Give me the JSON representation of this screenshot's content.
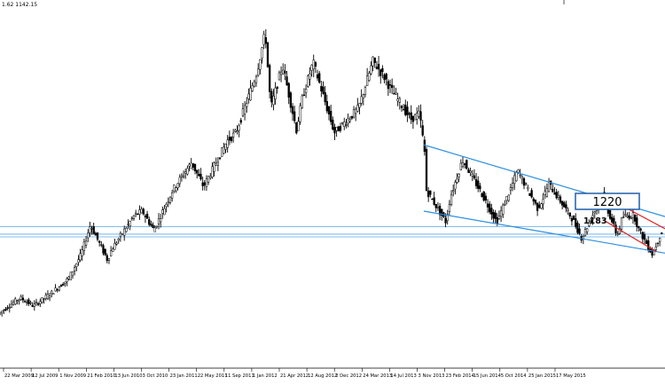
{
  "header": {
    "ohlc_text": "1.62 1142.15"
  },
  "chart_data": {
    "type": "candlestick",
    "xlim_date": [
      "2009-01-01",
      "2015-09-01"
    ],
    "ylim": [
      660,
      2020
    ],
    "grid": false,
    "x_tick_labels": [
      "22 Mar 2009",
      "12 Jul 2009",
      "1 Nov 2009",
      "21 Feb 2010",
      "13 Jun 2010",
      "3 Oct 2010",
      "23 Jan 2011",
      "22 May 2011",
      "11 Sep 2011",
      "1 Jan 2012",
      "21 Apr 2012",
      "12 Aug 2012",
      "2 Dec 2012",
      "24 Mar 2013",
      "14 Jul 2013",
      "3 Nov 2013",
      "23 Feb 2014",
      "15 Jun 2014",
      "5 Oct 2014",
      "25 Jan 2015",
      "17 May 2015"
    ],
    "price_path": [
      {
        "d": "2009-01-01",
        "v": 860
      },
      {
        "d": "2009-03-22",
        "v": 920
      },
      {
        "d": "2009-05-10",
        "v": 890
      },
      {
        "d": "2009-07-12",
        "v": 935
      },
      {
        "d": "2009-09-15",
        "v": 990
      },
      {
        "d": "2009-11-01",
        "v": 1080
      },
      {
        "d": "2009-12-05",
        "v": 1190
      },
      {
        "d": "2010-02-05",
        "v": 1060
      },
      {
        "d": "2010-02-21",
        "v": 1100
      },
      {
        "d": "2010-05-15",
        "v": 1225
      },
      {
        "d": "2010-06-13",
        "v": 1240
      },
      {
        "d": "2010-07-25",
        "v": 1170
      },
      {
        "d": "2010-10-03",
        "v": 1320
      },
      {
        "d": "2010-12-10",
        "v": 1420
      },
      {
        "d": "2011-01-23",
        "v": 1330
      },
      {
        "d": "2011-04-20",
        "v": 1500
      },
      {
        "d": "2011-05-22",
        "v": 1530
      },
      {
        "d": "2011-08-05",
        "v": 1750
      },
      {
        "d": "2011-09-06",
        "v": 1900
      },
      {
        "d": "2011-09-26",
        "v": 1620
      },
      {
        "d": "2011-11-08",
        "v": 1780
      },
      {
        "d": "2011-12-29",
        "v": 1540
      },
      {
        "d": "2012-01-20",
        "v": 1660
      },
      {
        "d": "2012-02-28",
        "v": 1790
      },
      {
        "d": "2012-05-16",
        "v": 1530
      },
      {
        "d": "2012-07-15",
        "v": 1590
      },
      {
        "d": "2012-08-12",
        "v": 1620
      },
      {
        "d": "2012-10-04",
        "v": 1795
      },
      {
        "d": "2012-11-25",
        "v": 1720
      },
      {
        "d": "2012-12-02",
        "v": 1700
      },
      {
        "d": "2013-02-20",
        "v": 1580
      },
      {
        "d": "2013-03-24",
        "v": 1600
      },
      {
        "d": "2013-04-12",
        "v": 1450
      },
      {
        "d": "2013-04-16",
        "v": 1320
      },
      {
        "d": "2013-06-28",
        "v": 1200
      },
      {
        "d": "2013-07-14",
        "v": 1290
      },
      {
        "d": "2013-08-28",
        "v": 1430
      },
      {
        "d": "2013-11-03",
        "v": 1310
      },
      {
        "d": "2013-12-31",
        "v": 1200
      },
      {
        "d": "2014-02-23",
        "v": 1330
      },
      {
        "d": "2014-03-17",
        "v": 1390
      },
      {
        "d": "2014-05-30",
        "v": 1250
      },
      {
        "d": "2014-06-15",
        "v": 1280
      },
      {
        "d": "2014-07-10",
        "v": 1340
      },
      {
        "d": "2014-10-05",
        "v": 1210
      },
      {
        "d": "2014-11-07",
        "v": 1140
      },
      {
        "d": "2015-01-22",
        "v": 1300
      },
      {
        "d": "2015-01-25",
        "v": 1290
      },
      {
        "d": "2015-03-17",
        "v": 1150
      },
      {
        "d": "2015-04-06",
        "v": 1220
      },
      {
        "d": "2015-05-17",
        "v": 1225
      },
      {
        "d": "2015-06-05",
        "v": 1170
      },
      {
        "d": "2015-07-24",
        "v": 1080
      },
      {
        "d": "2015-08-24",
        "v": 1160
      }
    ],
    "horizontal_lines": [
      1183,
      1155,
      1145
    ],
    "trend_lines": [
      {
        "name": "channel-upper",
        "color": "#2c8fe0",
        "from": {
          "d": "2013-04-01",
          "v": 1485
        },
        "to": {
          "d": "2015-09-01",
          "v": 1220
        }
      },
      {
        "name": "channel-lower",
        "color": "#2c8fe0",
        "from": {
          "d": "2013-04-01",
          "v": 1240
        },
        "to": {
          "d": "2015-09-01",
          "v": 1085
        }
      },
      {
        "name": "wedge-upper",
        "color": "#e02020",
        "from": {
          "d": "2015-01-22",
          "v": 1295
        },
        "to": {
          "d": "2015-09-01",
          "v": 1175
        }
      },
      {
        "name": "wedge-lower",
        "color": "#e02020",
        "from": {
          "d": "2015-01-22",
          "v": 1205
        },
        "to": {
          "d": "2015-08-01",
          "v": 1090
        }
      }
    ],
    "annotations": [
      {
        "name": "level-1220-label",
        "text": "1220",
        "boxed": true
      },
      {
        "name": "level-1183-label",
        "text": "1183",
        "boxed": false
      }
    ],
    "colors": {
      "candles": "#000000",
      "channel": "#2c8fe0",
      "wedge": "#e02020",
      "level_line": "#5aa8e8"
    }
  }
}
